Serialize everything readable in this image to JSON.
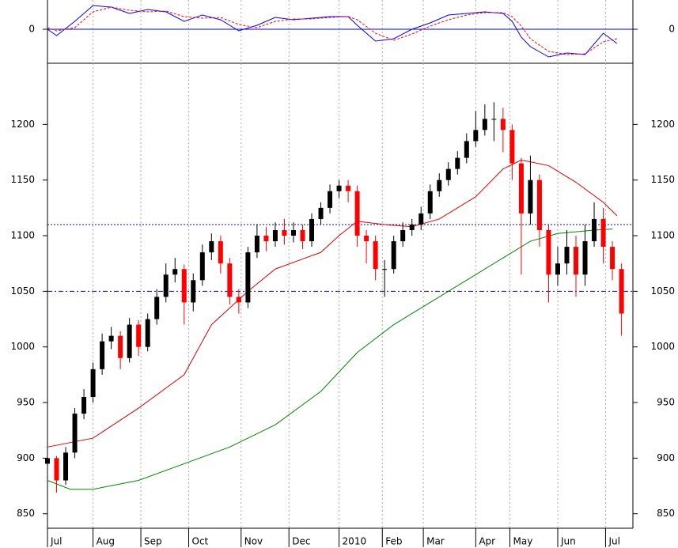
{
  "chart_data": [
    {
      "type": "line",
      "ylim": [
        -43,
        37
      ],
      "yticks": [
        0
      ],
      "xlim": [
        0,
        257
      ],
      "xticks": [
        {
          "value": 0,
          "label": "Jul"
        },
        {
          "value": 20,
          "label": "Aug"
        },
        {
          "value": 41,
          "label": "Sep"
        },
        {
          "value": 62,
          "label": "Oct"
        },
        {
          "value": 85,
          "label": "Nov"
        },
        {
          "value": 106,
          "label": "Dec"
        },
        {
          "value": 128,
          "label": "2010"
        },
        {
          "value": 147,
          "label": "Feb"
        },
        {
          "value": 165,
          "label": "Mar"
        },
        {
          "value": 188,
          "label": "Apr"
        },
        {
          "value": 203,
          "label": "May"
        },
        {
          "value": 224,
          "label": "Jun"
        },
        {
          "value": 245,
          "label": "Jul"
        }
      ],
      "grid": true,
      "x": [
        0,
        4,
        12,
        20,
        28,
        36,
        44,
        52,
        60,
        68,
        76,
        84,
        92,
        100,
        108,
        116,
        124,
        132,
        136,
        144,
        152,
        160,
        168,
        176,
        184,
        192,
        200,
        204,
        208,
        212,
        220,
        228,
        236,
        244,
        250
      ],
      "series": [
        {
          "color": "#0000ff",
          "dash": false,
          "values": [
            0,
            -8,
            10,
            30,
            28,
            20,
            25,
            22,
            10,
            18,
            12,
            -2,
            5,
            15,
            12,
            14,
            16,
            16,
            5,
            -15,
            -12,
            0,
            8,
            18,
            20,
            22,
            20,
            10,
            -10,
            -22,
            -35,
            -30,
            -32,
            -5,
            -18
          ]
        },
        {
          "color": "#ff0000",
          "dash": true,
          "values": [
            2,
            -2,
            2,
            22,
            28,
            24,
            22,
            23,
            16,
            14,
            15,
            6,
            2,
            10,
            13,
            13,
            15,
            16,
            12,
            -5,
            -14,
            -6,
            4,
            12,
            18,
            21,
            21,
            16,
            4,
            -12,
            -28,
            -32,
            -31,
            -16,
            -12
          ]
        }
      ]
    },
    {
      "type": "candlestick",
      "ylim": [
        837,
        1255
      ],
      "yticks": [
        850,
        900,
        950,
        1000,
        1050,
        1100,
        1150,
        1200
      ],
      "xlim": [
        0,
        257
      ],
      "xticks": [
        {
          "value": 0,
          "label": "Jul"
        },
        {
          "value": 20,
          "label": "Aug"
        },
        {
          "value": 41,
          "label": "Sep"
        },
        {
          "value": 62,
          "label": "Oct"
        },
        {
          "value": 85,
          "label": "Nov"
        },
        {
          "value": 106,
          "label": "Dec"
        },
        {
          "value": 128,
          "label": "2010"
        },
        {
          "value": 147,
          "label": "Feb"
        },
        {
          "value": 165,
          "label": "Mar"
        },
        {
          "value": 188,
          "label": "Apr"
        },
        {
          "value": 203,
          "label": "May"
        },
        {
          "value": 224,
          "label": "Jun"
        },
        {
          "value": 245,
          "label": "Jul"
        }
      ],
      "grid": true,
      "up_color": "#000000",
      "down_color": "#ff0000",
      "reference_lines": [
        {
          "value": 1110,
          "color": "#0000cc",
          "dash": "2,2"
        },
        {
          "value": 1050,
          "color": "#0000cc",
          "dash": "6,3,2,3"
        }
      ],
      "candles": {
        "x": [
          0,
          4,
          8,
          12,
          16,
          20,
          24,
          28,
          32,
          36,
          40,
          44,
          48,
          52,
          56,
          60,
          64,
          68,
          72,
          76,
          80,
          84,
          88,
          92,
          96,
          100,
          104,
          108,
          112,
          116,
          120,
          124,
          128,
          132,
          136,
          140,
          144,
          148,
          152,
          156,
          160,
          164,
          168,
          172,
          176,
          180,
          184,
          188,
          192,
          196,
          200,
          204,
          208,
          212,
          216,
          220,
          224,
          228,
          232,
          236,
          240,
          244,
          248,
          252
        ],
        "open": [
          895,
          900,
          880,
          905,
          940,
          955,
          980,
          1005,
          1010,
          990,
          1020,
          1000,
          1025,
          1045,
          1065,
          1070,
          1040,
          1060,
          1085,
          1095,
          1075,
          1045,
          1040,
          1085,
          1100,
          1095,
          1105,
          1100,
          1105,
          1095,
          1115,
          1125,
          1140,
          1145,
          1140,
          1100,
          1095,
          1070,
          1070,
          1095,
          1105,
          1110,
          1120,
          1140,
          1150,
          1160,
          1170,
          1185,
          1195,
          1205,
          1205,
          1195,
          1165,
          1120,
          1150,
          1105,
          1065,
          1075,
          1090,
          1065,
          1095,
          1115,
          1090,
          1070
        ],
        "high": [
          905,
          902,
          910,
          945,
          962,
          986,
          1012,
          1018,
          1014,
          1026,
          1024,
          1030,
          1052,
          1075,
          1080,
          1074,
          1066,
          1092,
          1102,
          1100,
          1080,
          1052,
          1090,
          1110,
          1108,
          1112,
          1115,
          1112,
          1110,
          1120,
          1130,
          1146,
          1150,
          1150,
          1145,
          1105,
          1100,
          1078,
          1100,
          1112,
          1115,
          1126,
          1146,
          1156,
          1166,
          1176,
          1192,
          1212,
          1218,
          1220,
          1215,
          1200,
          1170,
          1172,
          1155,
          1110,
          1090,
          1105,
          1100,
          1110,
          1130,
          1125,
          1095,
          1075
        ],
        "low": [
          885,
          869,
          876,
          900,
          935,
          950,
          975,
          998,
          980,
          986,
          992,
          996,
          1020,
          1040,
          1058,
          1020,
          1032,
          1055,
          1078,
          1066,
          1038,
          1030,
          1035,
          1080,
          1086,
          1090,
          1092,
          1094,
          1088,
          1090,
          1110,
          1120,
          1134,
          1130,
          1090,
          1075,
          1060,
          1045,
          1066,
          1090,
          1100,
          1105,
          1115,
          1135,
          1145,
          1155,
          1165,
          1180,
          1190,
          1185,
          1175,
          1150,
          1065,
          1110,
          1090,
          1040,
          1055,
          1065,
          1045,
          1055,
          1090,
          1075,
          1060,
          1010
        ],
        "close": [
          900,
          880,
          905,
          940,
          955,
          980,
          1005,
          1010,
          990,
          1020,
          1000,
          1025,
          1045,
          1065,
          1070,
          1040,
          1060,
          1085,
          1095,
          1075,
          1045,
          1040,
          1085,
          1100,
          1095,
          1105,
          1100,
          1105,
          1095,
          1115,
          1125,
          1140,
          1145,
          1140,
          1100,
          1095,
          1070,
          1070,
          1095,
          1105,
          1110,
          1120,
          1140,
          1150,
          1160,
          1170,
          1185,
          1195,
          1205,
          1205,
          1195,
          1165,
          1120,
          1150,
          1105,
          1065,
          1075,
          1090,
          1065,
          1095,
          1115,
          1090,
          1070,
          1030
        ]
      },
      "series": [
        {
          "color": "#dd0000",
          "x": [
            0,
            20,
            40,
            60,
            64,
            72,
            88,
            100,
            120,
            128,
            136,
            148,
            160,
            172,
            188,
            200,
            208,
            220,
            232,
            244,
            250
          ],
          "values": [
            910,
            918,
            945,
            975,
            990,
            1020,
            1050,
            1070,
            1085,
            1100,
            1113,
            1110,
            1108,
            1115,
            1135,
            1160,
            1168,
            1163,
            1148,
            1130,
            1118
          ]
        },
        {
          "color": "#008800",
          "x": [
            0,
            10,
            20,
            40,
            60,
            80,
            100,
            120,
            136,
            152,
            168,
            184,
            200,
            212,
            224,
            240,
            248
          ],
          "values": [
            880,
            872,
            872,
            880,
            895,
            910,
            930,
            960,
            995,
            1020,
            1040,
            1060,
            1080,
            1095,
            1102,
            1105,
            1106
          ]
        }
      ]
    }
  ]
}
